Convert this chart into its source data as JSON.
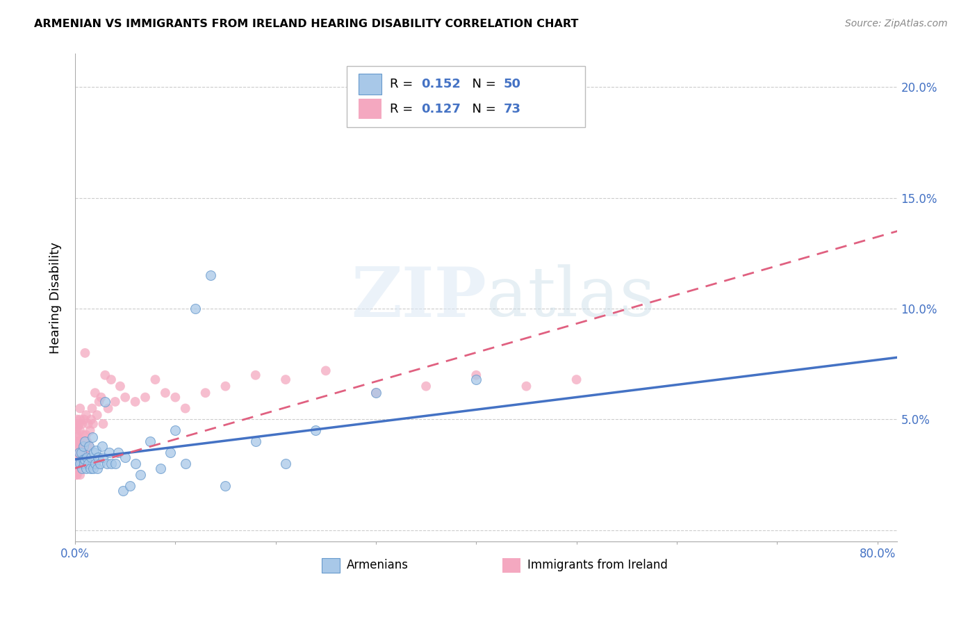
{
  "title": "ARMENIAN VS IMMIGRANTS FROM IRELAND HEARING DISABILITY CORRELATION CHART",
  "source": "Source: ZipAtlas.com",
  "ylabel": "Hearing Disability",
  "xlim": [
    0.0,
    0.82
  ],
  "ylim": [
    -0.005,
    0.215
  ],
  "yticks": [
    0.0,
    0.05,
    0.1,
    0.15,
    0.2
  ],
  "ytick_labels_right": [
    "",
    "5.0%",
    "10.0%",
    "15.0%",
    "20.0%"
  ],
  "xticks": [
    0.0,
    0.1,
    0.2,
    0.3,
    0.4,
    0.5,
    0.6,
    0.7,
    0.8
  ],
  "xtick_labels": [
    "0.0%",
    "",
    "",
    "",
    "",
    "",
    "",
    "",
    "80.0%"
  ],
  "armenian_color": "#a8c8e8",
  "ireland_color": "#f4a8c0",
  "armenian_line_color": "#4472c4",
  "ireland_line_color": "#e06080",
  "tick_color": "#4472c4",
  "legend_R_armenian": "0.152",
  "legend_N_armenian": "50",
  "legend_R_ireland": "0.127",
  "legend_N_ireland": "73",
  "watermark_zip": "ZIP",
  "watermark_atlas": "atlas",
  "armenian_scatter_x": [
    0.003,
    0.004,
    0.005,
    0.006,
    0.007,
    0.008,
    0.008,
    0.009,
    0.01,
    0.01,
    0.011,
    0.012,
    0.013,
    0.014,
    0.015,
    0.016,
    0.017,
    0.018,
    0.019,
    0.02,
    0.021,
    0.022,
    0.023,
    0.025,
    0.027,
    0.028,
    0.03,
    0.032,
    0.034,
    0.036,
    0.04,
    0.043,
    0.048,
    0.05,
    0.055,
    0.06,
    0.065,
    0.075,
    0.085,
    0.095,
    0.1,
    0.11,
    0.12,
    0.135,
    0.15,
    0.18,
    0.21,
    0.24,
    0.3,
    0.4
  ],
  "armenian_scatter_y": [
    0.03,
    0.035,
    0.03,
    0.035,
    0.028,
    0.032,
    0.038,
    0.03,
    0.032,
    0.04,
    0.028,
    0.033,
    0.03,
    0.038,
    0.028,
    0.033,
    0.042,
    0.028,
    0.035,
    0.03,
    0.036,
    0.028,
    0.033,
    0.03,
    0.038,
    0.033,
    0.058,
    0.03,
    0.035,
    0.03,
    0.03,
    0.035,
    0.018,
    0.033,
    0.02,
    0.03,
    0.025,
    0.04,
    0.028,
    0.035,
    0.045,
    0.03,
    0.1,
    0.115,
    0.02,
    0.04,
    0.03,
    0.045,
    0.062,
    0.068
  ],
  "ireland_scatter_x": [
    0.001,
    0.001,
    0.001,
    0.002,
    0.002,
    0.002,
    0.002,
    0.002,
    0.002,
    0.002,
    0.002,
    0.003,
    0.003,
    0.003,
    0.003,
    0.003,
    0.004,
    0.004,
    0.004,
    0.004,
    0.005,
    0.005,
    0.005,
    0.005,
    0.005,
    0.005,
    0.005,
    0.006,
    0.006,
    0.007,
    0.007,
    0.008,
    0.008,
    0.009,
    0.009,
    0.01,
    0.01,
    0.011,
    0.011,
    0.012,
    0.013,
    0.014,
    0.015,
    0.016,
    0.017,
    0.018,
    0.02,
    0.022,
    0.024,
    0.026,
    0.028,
    0.03,
    0.033,
    0.036,
    0.04,
    0.045,
    0.05,
    0.06,
    0.07,
    0.08,
    0.09,
    0.1,
    0.11,
    0.13,
    0.15,
    0.18,
    0.21,
    0.25,
    0.3,
    0.35,
    0.4,
    0.45,
    0.5
  ],
  "ireland_scatter_y": [
    0.025,
    0.03,
    0.035,
    0.025,
    0.03,
    0.035,
    0.038,
    0.04,
    0.043,
    0.046,
    0.05,
    0.028,
    0.033,
    0.038,
    0.042,
    0.047,
    0.028,
    0.033,
    0.04,
    0.048,
    0.025,
    0.03,
    0.035,
    0.04,
    0.045,
    0.05,
    0.055,
    0.03,
    0.038,
    0.033,
    0.048,
    0.035,
    0.043,
    0.038,
    0.05,
    0.035,
    0.08,
    0.043,
    0.052,
    0.04,
    0.048,
    0.038,
    0.045,
    0.05,
    0.055,
    0.048,
    0.062,
    0.052,
    0.058,
    0.06,
    0.048,
    0.07,
    0.055,
    0.068,
    0.058,
    0.065,
    0.06,
    0.058,
    0.06,
    0.068,
    0.062,
    0.06,
    0.055,
    0.062,
    0.065,
    0.07,
    0.068,
    0.072,
    0.062,
    0.065,
    0.07,
    0.065,
    0.068
  ],
  "arm_line_x0": 0.0,
  "arm_line_x1": 0.82,
  "arm_line_y0": 0.032,
  "arm_line_y1": 0.078,
  "ire_line_x0": 0.0,
  "ire_line_x1": 0.82,
  "ire_line_y0": 0.028,
  "ire_line_y1": 0.135
}
